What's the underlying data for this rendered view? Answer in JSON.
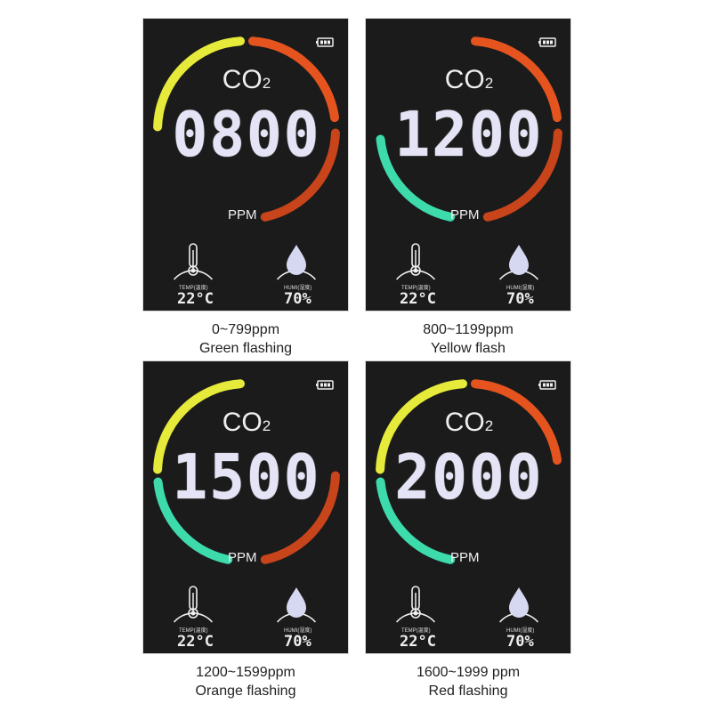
{
  "colors": {
    "yellow": "#e6ea3a",
    "orange": "#e5541f",
    "red": "#c8441a",
    "green": "#3ddbac",
    "background": "#1b1b1b"
  },
  "labels": {
    "co2_main": "CO",
    "co2_sub": "2",
    "unit": "PPM",
    "temp_label": "TEMP(温度)",
    "humi_label": "HUMI(湿度)"
  },
  "panels": [
    {
      "reading": "0800",
      "temp": "22°C",
      "humidity": "70%",
      "arcs": [
        "yellow",
        "orange",
        "red"
      ],
      "caption_range": "0~799ppm",
      "caption_state": "Green flashing"
    },
    {
      "reading": "1200",
      "temp": "22°C",
      "humidity": "70%",
      "arcs": [
        "green",
        "orange",
        "red"
      ],
      "caption_range": "800~1199ppm",
      "caption_state": "Yellow flash"
    },
    {
      "reading": "1500",
      "temp": "22°C",
      "humidity": "70%",
      "arcs": [
        "yellow",
        "green",
        "red"
      ],
      "caption_range": "1200~1599ppm",
      "caption_state": "Orange flashing"
    },
    {
      "reading": "2000",
      "temp": "22°C",
      "humidity": "70%",
      "arcs": [
        "yellow",
        "orange",
        "green"
      ],
      "caption_range": "1600~1999 ppm",
      "caption_state": "Red flashing"
    }
  ]
}
